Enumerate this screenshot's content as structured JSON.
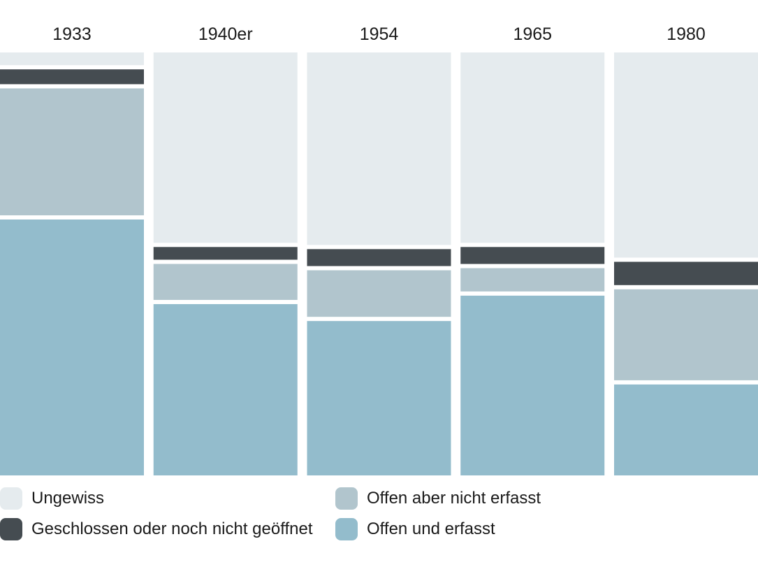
{
  "chart_data": {
    "type": "stacked-bar-100",
    "title": "",
    "xlabel": "",
    "ylabel": "",
    "categories": [
      "1933",
      "1940er",
      "1954",
      "1965",
      "1980"
    ],
    "series": [
      {
        "name": "Offen und erfasst",
        "color": "#93bccc",
        "values": [
          60.5,
          40.5,
          36.5,
          42.5,
          21.5
        ]
      },
      {
        "name": "Offen aber nicht erfasst",
        "color": "#b1c5cd",
        "values": [
          31.0,
          9.5,
          12.0,
          6.5,
          22.5
        ]
      },
      {
        "name": "Geschlossen oder noch nicht geöffnet",
        "color": "#454c51",
        "values": [
          4.5,
          4.0,
          5.0,
          5.0,
          6.5
        ]
      },
      {
        "name": "Ungewiss",
        "color": "#e5ebee",
        "values": [
          4.0,
          46.0,
          46.5,
          46.0,
          49.5
        ]
      }
    ],
    "ylim": [
      0,
      100
    ],
    "grid": false,
    "legend_position": "bottom"
  },
  "legend": {
    "items": [
      {
        "label": "Ungewiss",
        "color": "#e5ebee"
      },
      {
        "label": "Geschlossen oder noch nicht geöffnet",
        "color": "#454c51"
      },
      {
        "label": "Offen aber nicht erfasst",
        "color": "#b1c5cd"
      },
      {
        "label": "Offen und erfasst",
        "color": "#93bccc"
      }
    ]
  }
}
